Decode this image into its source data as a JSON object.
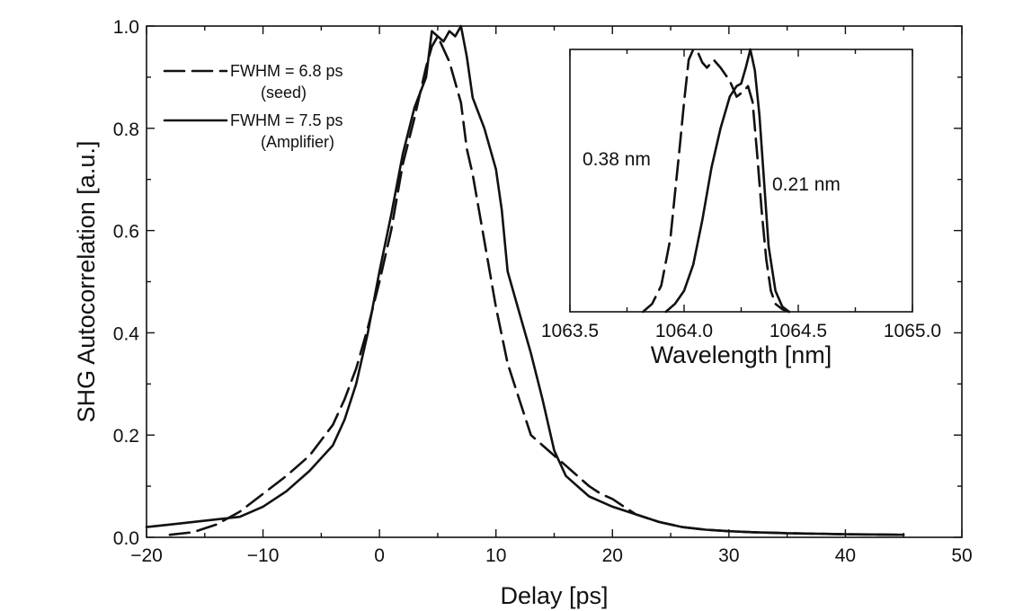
{
  "chart_data": [
    {
      "type": "line",
      "title": "",
      "xlabel": "Delay [ps]",
      "ylabel": "SHG Autocorrelation [a.u.]",
      "xlim": [
        -20,
        50
      ],
      "ylim": [
        0.0,
        1.0
      ],
      "xticks": [
        -20,
        -10,
        0,
        10,
        20,
        30,
        40,
        50
      ],
      "xtick_labels": [
        "−20",
        "−10",
        "0",
        "10",
        "20",
        "30",
        "40",
        "50"
      ],
      "yticks": [
        0.0,
        0.2,
        0.4,
        0.6,
        0.8,
        1.0
      ],
      "ytick_labels": [
        "0.0",
        "0.2",
        "0.4",
        "0.6",
        "0.8",
        "1.0"
      ],
      "grid": false,
      "legend_position": "top-left",
      "series": [
        {
          "name": "FWHM = 6.8 ps",
          "sub_label": "(seed)",
          "style": "dashed",
          "x": [
            -18,
            -16,
            -14,
            -12,
            -10,
            -8,
            -6,
            -4,
            -3,
            -2,
            -1,
            0,
            1,
            2,
            3,
            4,
            4.5,
            5,
            6,
            7,
            7.5,
            8,
            9,
            10,
            11,
            12,
            13,
            14,
            15,
            16,
            17,
            18,
            19,
            20,
            21,
            22,
            24,
            26,
            28,
            30,
            32,
            35,
            40,
            45
          ],
          "y": [
            0.005,
            0.01,
            0.025,
            0.05,
            0.085,
            0.12,
            0.16,
            0.22,
            0.27,
            0.33,
            0.41,
            0.5,
            0.6,
            0.73,
            0.82,
            0.92,
            0.96,
            0.98,
            0.93,
            0.85,
            0.76,
            0.71,
            0.58,
            0.45,
            0.34,
            0.27,
            0.2,
            0.18,
            0.16,
            0.14,
            0.12,
            0.1,
            0.085,
            0.075,
            0.06,
            0.045,
            0.03,
            0.02,
            0.015,
            0.012,
            0.01,
            0.008,
            0.006,
            0.005
          ]
        },
        {
          "name": "FWHM = 7.5 ps",
          "sub_label": "(Amplifier)",
          "style": "solid",
          "x": [
            -20,
            -18,
            -16,
            -14,
            -12,
            -10,
            -8,
            -6,
            -4,
            -3,
            -2,
            -1,
            0,
            1,
            2,
            3,
            4,
            4.5,
            5,
            5.5,
            6,
            6.5,
            7,
            7.5,
            8,
            9,
            10,
            10.5,
            11,
            12,
            13,
            14,
            15,
            16,
            17,
            18,
            19,
            20,
            22,
            24,
            26,
            28,
            30,
            32,
            35,
            40,
            45
          ],
          "y": [
            0.02,
            0.025,
            0.03,
            0.035,
            0.04,
            0.06,
            0.09,
            0.13,
            0.18,
            0.23,
            0.3,
            0.4,
            0.52,
            0.63,
            0.75,
            0.84,
            0.9,
            0.99,
            0.98,
            0.97,
            0.99,
            0.98,
            1.0,
            0.94,
            0.86,
            0.8,
            0.72,
            0.64,
            0.52,
            0.44,
            0.36,
            0.27,
            0.17,
            0.12,
            0.1,
            0.08,
            0.07,
            0.06,
            0.045,
            0.03,
            0.02,
            0.015,
            0.012,
            0.01,
            0.008,
            0.006,
            0.005
          ]
        }
      ]
    },
    {
      "type": "line",
      "title": "",
      "xlabel": "Wavelength [nm]",
      "ylabel": "",
      "xlim": [
        1063.5,
        1065.0
      ],
      "ylim": [
        0,
        1
      ],
      "xticks": [
        1063.5,
        1064.0,
        1064.5,
        1065.0
      ],
      "xtick_labels": [
        "1063.5",
        "1064.0",
        "1064.5",
        "1065.0"
      ],
      "grid": false,
      "annotations": [
        "0.38 nm",
        "0.21 nm"
      ],
      "series": [
        {
          "style": "dashed",
          "x": [
            1063.82,
            1063.86,
            1063.9,
            1063.94,
            1063.96,
            1063.98,
            1064.0,
            1064.02,
            1064.04,
            1064.06,
            1064.08,
            1064.1,
            1064.13,
            1064.16,
            1064.2,
            1064.23,
            1064.26,
            1064.28,
            1064.3,
            1064.32,
            1064.34,
            1064.36,
            1064.38,
            1064.4,
            1064.43,
            1064.46
          ],
          "y": [
            0.0,
            0.03,
            0.1,
            0.28,
            0.45,
            0.62,
            0.8,
            0.96,
            1.0,
            0.99,
            0.95,
            0.93,
            0.96,
            0.93,
            0.88,
            0.82,
            0.84,
            0.86,
            0.8,
            0.6,
            0.38,
            0.2,
            0.08,
            0.03,
            0.01,
            0.0
          ]
        },
        {
          "style": "solid",
          "x": [
            1063.92,
            1063.96,
            1064.0,
            1064.04,
            1064.08,
            1064.12,
            1064.16,
            1064.2,
            1064.23,
            1064.25,
            1064.27,
            1064.29,
            1064.31,
            1064.33,
            1064.35,
            1064.37,
            1064.4,
            1064.43,
            1064.46
          ],
          "y": [
            0.0,
            0.03,
            0.08,
            0.18,
            0.35,
            0.55,
            0.7,
            0.82,
            0.86,
            0.87,
            0.93,
            1.0,
            0.92,
            0.75,
            0.5,
            0.25,
            0.08,
            0.02,
            0.0
          ]
        }
      ]
    }
  ]
}
